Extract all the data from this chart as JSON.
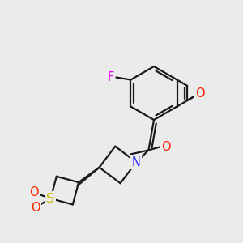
{
  "background_color": "#ebebeb",
  "bond_color": "#1a1a1a",
  "atom_colors": {
    "F": "#ee00ee",
    "O": "#ff2200",
    "N": "#2222ff",
    "S": "#ccbb00",
    "C": "#1a1a1a"
  },
  "figsize": [
    3.0,
    3.0
  ],
  "dpi": 100
}
